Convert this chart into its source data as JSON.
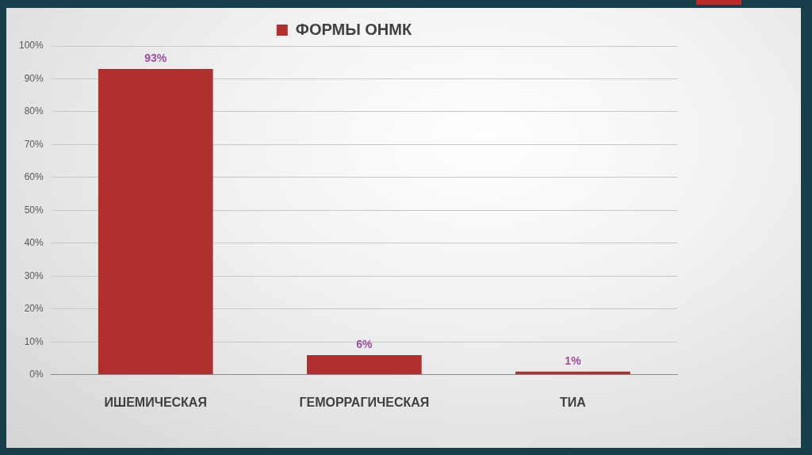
{
  "chart_data": {
    "type": "bar",
    "categories": [
      "ИШЕМИЧЕСКАЯ",
      "ГЕМОРРАГИЧЕСКАЯ",
      "ТИА"
    ],
    "series": [
      {
        "name": "ФОРМЫ ОНМК",
        "color": "#b03030",
        "values": [
          93,
          6,
          1
        ],
        "value_labels": [
          "93%",
          "6%",
          "1%"
        ]
      }
    ],
    "ylim": [
      0,
      100
    ],
    "yticks": [
      {
        "value": 0,
        "label": "0%"
      },
      {
        "value": 10,
        "label": "10%"
      },
      {
        "value": 20,
        "label": "20%"
      },
      {
        "value": 30,
        "label": "30%"
      },
      {
        "value": 40,
        "label": "40%"
      },
      {
        "value": 50,
        "label": "50%"
      },
      {
        "value": 60,
        "label": "60%"
      },
      {
        "value": 70,
        "label": "70%"
      },
      {
        "value": 80,
        "label": "80%"
      },
      {
        "value": 90,
        "label": "90%"
      },
      {
        "value": 100,
        "label": "100%"
      }
    ],
    "grid": "y",
    "legend": "top"
  }
}
